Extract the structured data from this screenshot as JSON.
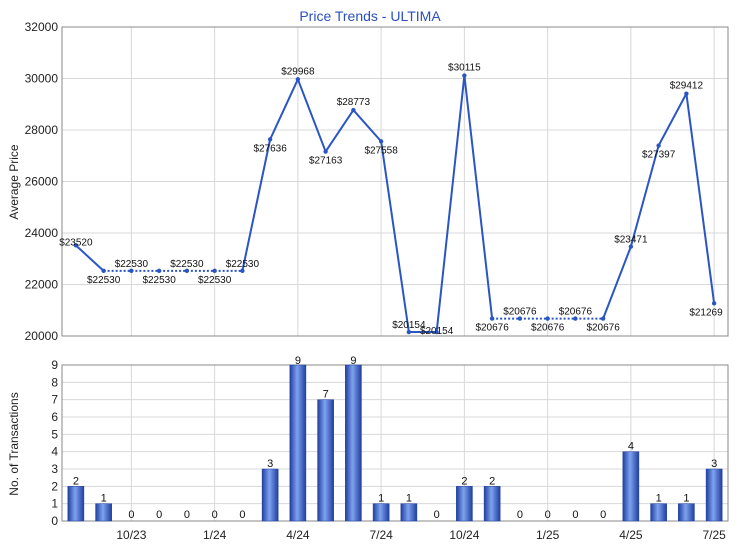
{
  "chart_data": [
    {
      "type": "line",
      "title": "Price Trends - ULTIMA",
      "ylabel": "Average Price",
      "ylim": [
        20000,
        32000
      ],
      "yticks": [
        20000,
        22000,
        24000,
        26000,
        28000,
        30000,
        32000
      ],
      "grid": true,
      "series": [
        {
          "values": [
            23520,
            22530,
            22530,
            22530,
            22530,
            22530,
            22530,
            27636,
            29968,
            27163,
            28773,
            27558,
            20154,
            20154,
            30115,
            20676,
            20676,
            20676,
            20676,
            20676,
            23471,
            27397,
            29412,
            21269
          ],
          "labels": [
            "$23520",
            "$22530",
            "$22530",
            "$22530",
            "$22530",
            "$22530",
            "$22530",
            "$27636",
            "$29968",
            "$27163",
            "$28773",
            "$27558",
            "$20154",
            "$20154",
            "$30115",
            "$20676",
            "$20676",
            "$20676",
            "$20676",
            "$20676",
            "$23471",
            "$27397",
            "$29412",
            "$21269"
          ],
          "interpolated": [
            false,
            false,
            true,
            true,
            true,
            true,
            false,
            false,
            false,
            false,
            false,
            false,
            false,
            false,
            false,
            false,
            true,
            true,
            true,
            false,
            false,
            false,
            false,
            false
          ]
        }
      ],
      "color": "#2a55c4"
    },
    {
      "type": "bar",
      "ylabel": "No. of Transactions",
      "ylim": [
        0,
        9
      ],
      "yticks": [
        0,
        1,
        2,
        3,
        4,
        5,
        6,
        7,
        8,
        9
      ],
      "grid": true,
      "values": [
        2,
        1,
        0,
        0,
        0,
        0,
        0,
        3,
        9,
        7,
        9,
        1,
        1,
        0,
        2,
        2,
        0,
        0,
        0,
        0,
        4,
        1,
        1,
        3
      ],
      "color": "#2a55c4"
    }
  ],
  "xaxis": {
    "ticks": [
      {
        "label": "10/23",
        "index": 2
      },
      {
        "label": "1/24",
        "index": 5
      },
      {
        "label": "4/24",
        "index": 8
      },
      {
        "label": "7/24",
        "index": 11
      },
      {
        "label": "10/24",
        "index": 14
      },
      {
        "label": "1/25",
        "index": 17
      },
      {
        "label": "4/25",
        "index": 20
      },
      {
        "label": "7/25",
        "index": 23
      }
    ]
  }
}
